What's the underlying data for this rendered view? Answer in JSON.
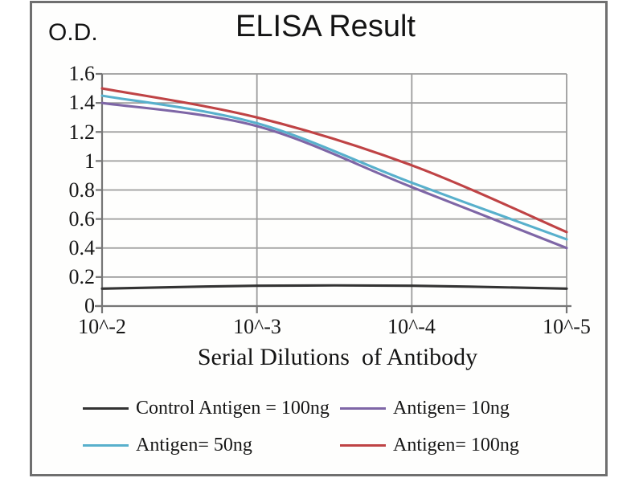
{
  "figure": {
    "title": "ELISA Result",
    "od_label": "O.D."
  },
  "chart_data": {
    "type": "line",
    "title": "ELISA Result",
    "ylabel": "O.D.",
    "xlabel": "Serial Dilutions  of Antibody",
    "x_tick_labels": [
      "10^-2",
      "10^-3",
      "10^-4",
      "10^-5"
    ],
    "y_tick_labels": [
      "1.6",
      "1.4",
      "1.2",
      "1",
      "0.8",
      "0.6",
      "0.4",
      "0.2",
      "0"
    ],
    "ylim": [
      0,
      1.6
    ],
    "grid": true,
    "legend_position": "bottom",
    "axis_color": "#767676",
    "grid_color": "#9c9c9c",
    "series": [
      {
        "name": "Control Antigen = 100ng",
        "color": "#333333",
        "values": [
          0.12,
          0.14,
          0.14,
          0.12
        ]
      },
      {
        "name": "Antigen= 10ng",
        "color": "#7e66a6",
        "values": [
          1.4,
          1.24,
          0.82,
          0.4
        ]
      },
      {
        "name": "Antigen= 50ng",
        "color": "#58b0cc",
        "values": [
          1.45,
          1.26,
          0.85,
          0.46
        ]
      },
      {
        "name": "Antigen= 100ng",
        "color": "#bf4345",
        "values": [
          1.5,
          1.3,
          0.97,
          0.51
        ]
      }
    ]
  }
}
